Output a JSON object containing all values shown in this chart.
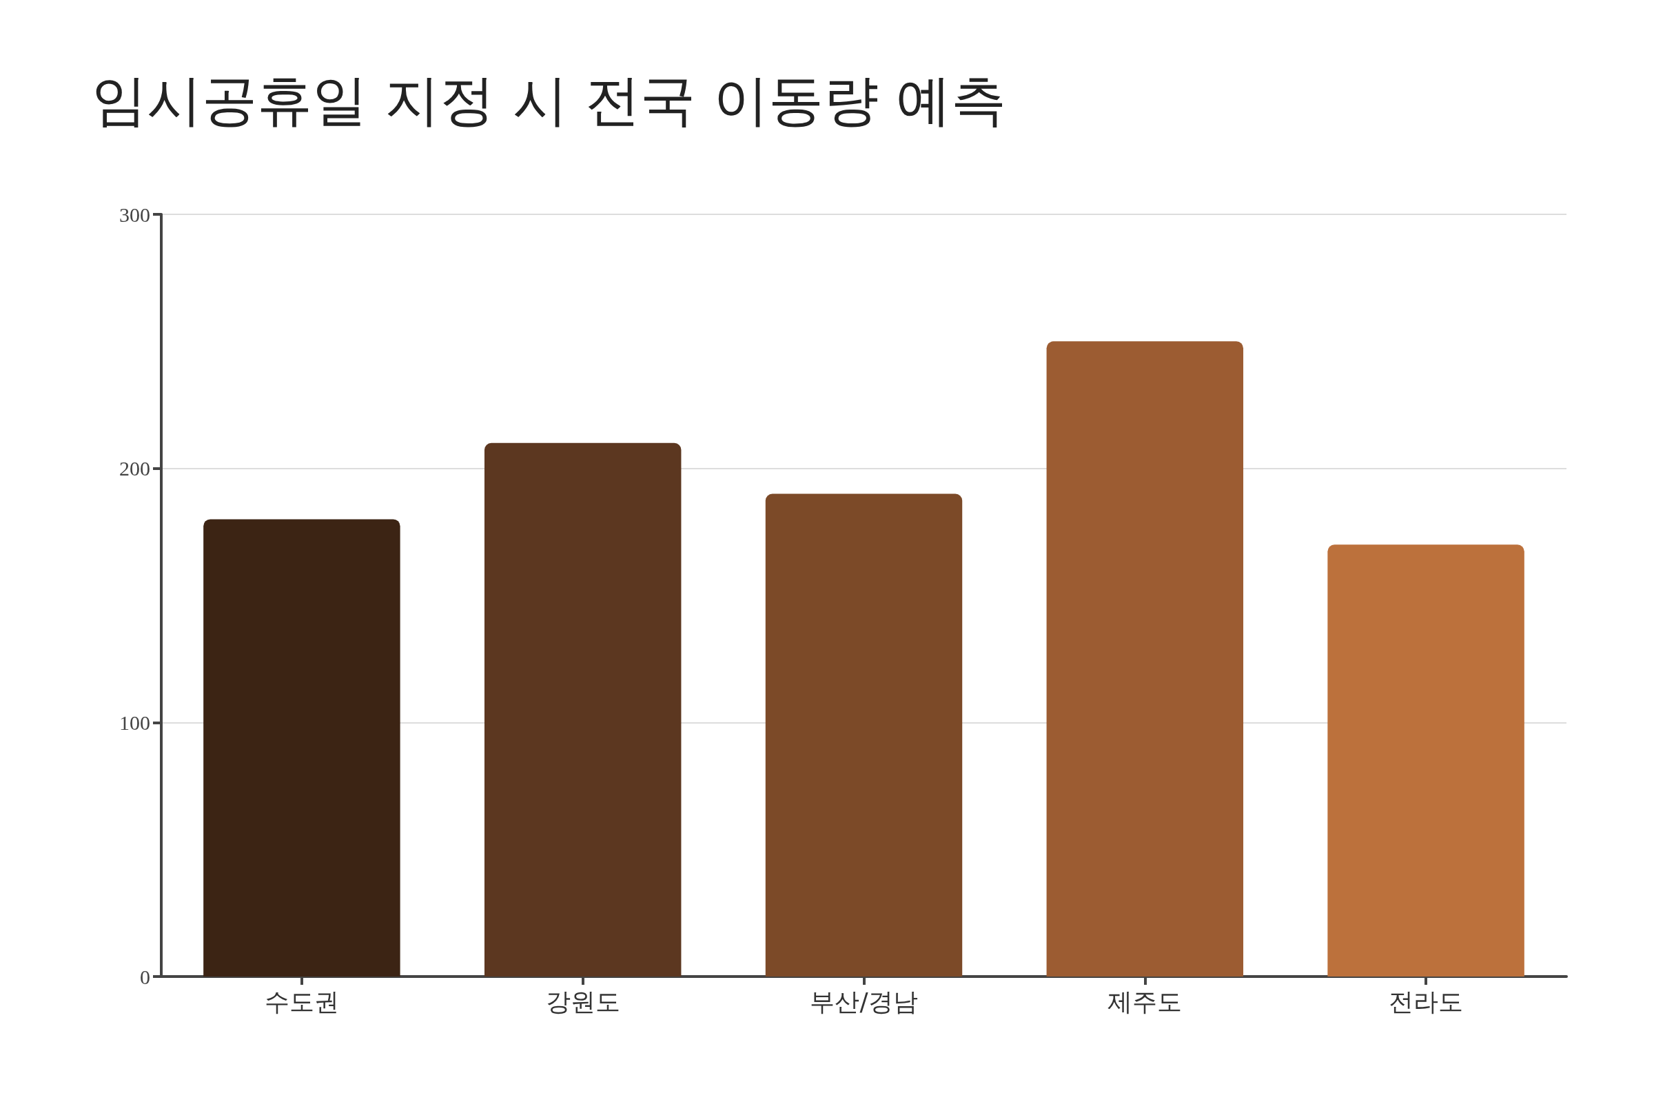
{
  "chart_data": {
    "type": "bar",
    "title": "임시공휴일 지정 시 전국 이동량 예측",
    "categories": [
      "수도권",
      "강원도",
      "부산/경남",
      "제주도",
      "전라도"
    ],
    "values": [
      180,
      210,
      190,
      250,
      170
    ],
    "colors": [
      "#3c2414",
      "#5c3720",
      "#7c4a28",
      "#9c5c32",
      "#bc713c"
    ],
    "ylim": [
      0,
      300
    ],
    "yticks": [
      0,
      100,
      200,
      300
    ],
    "grid": "y"
  }
}
